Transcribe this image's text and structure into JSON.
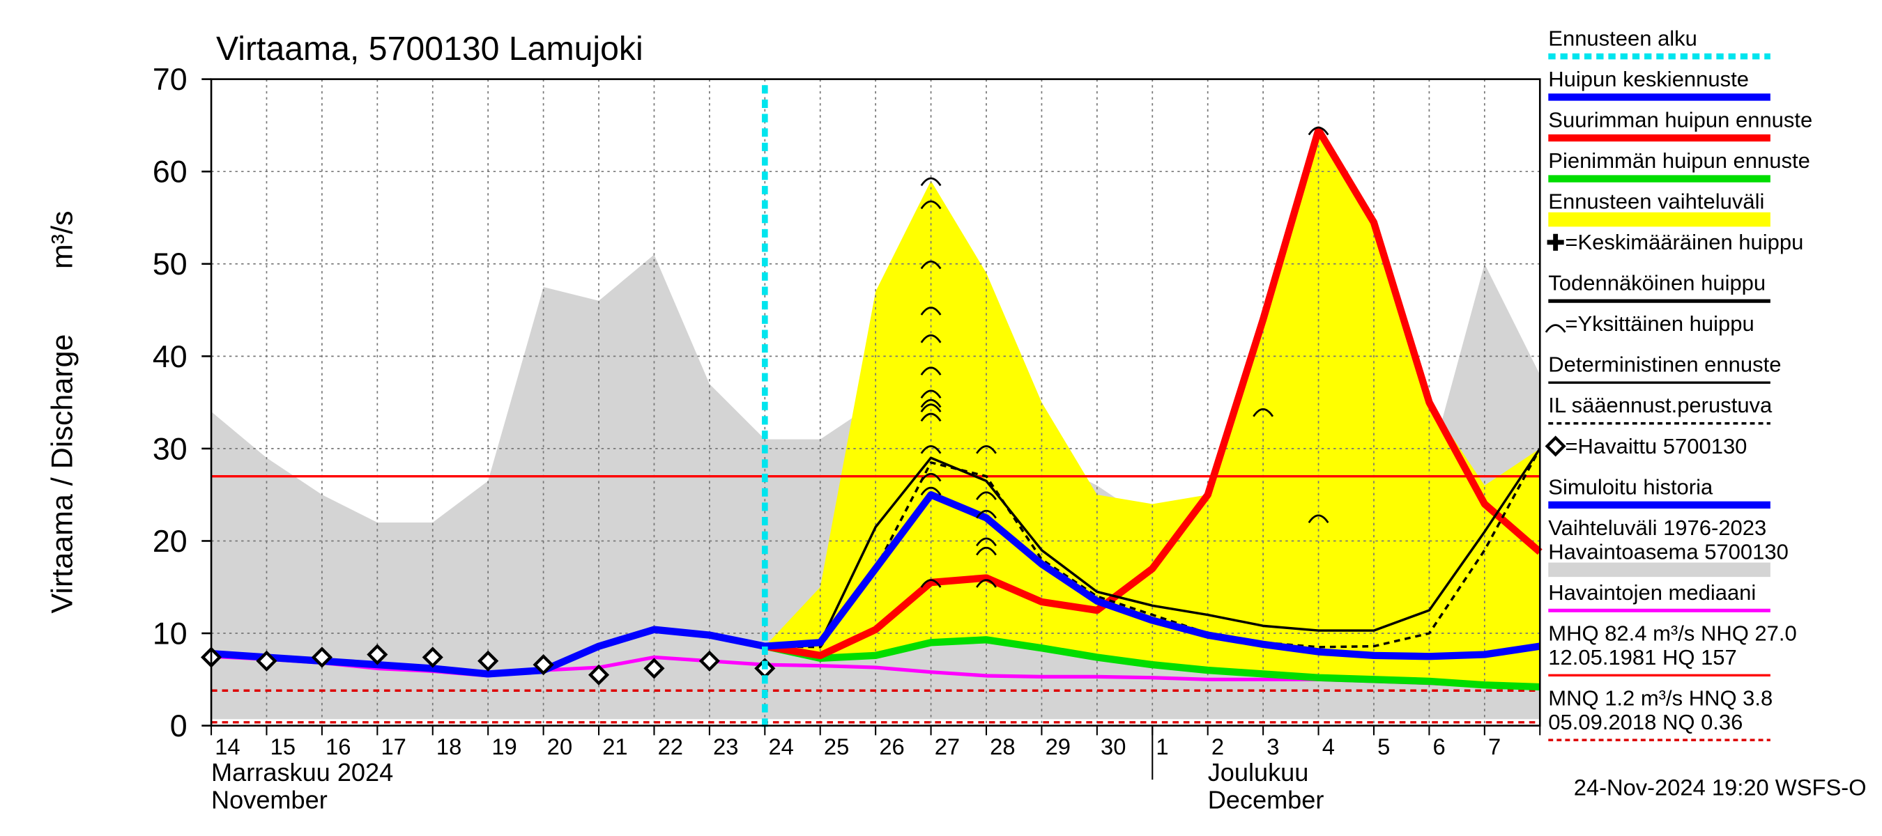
{
  "chart_data": {
    "type": "line",
    "title": "Virtaama, 5700130 Lamujoki",
    "y_label": "Virtaama / Discharge",
    "y_unit": "m³/s",
    "footer": "24-Nov-2024 19:20 WSFS-O",
    "categories": [
      "14",
      "15",
      "16",
      "17",
      "18",
      "19",
      "20",
      "21",
      "22",
      "23",
      "24",
      "25",
      "26",
      "27",
      "28",
      "29",
      "30",
      "1",
      "2",
      "3",
      "4",
      "5",
      "6",
      "7",
      null
    ],
    "ylim": [
      0,
      70
    ],
    "yticks": [
      0,
      10,
      20,
      30,
      40,
      50,
      60,
      70
    ],
    "grid": true,
    "forecast_start": "24",
    "month_start": "1",
    "month_labels": [
      {
        "at": "14",
        "lines": [
          "Marraskuu 2024",
          "November"
        ]
      },
      {
        "at": "2",
        "lines": [
          "Joulukuu",
          "December"
        ]
      }
    ],
    "areas": [
      {
        "color": "#d4d4d4",
        "upper": [
          34,
          29,
          25,
          22,
          22,
          26.5,
          47.5,
          46,
          51,
          37,
          31,
          31,
          35,
          35,
          27.5,
          29,
          26,
          22,
          21,
          21,
          23.5,
          21,
          28,
          50,
          38
        ],
        "lower": [
          0.7,
          0.7,
          0.7,
          0.7,
          0.7,
          0.7,
          0.7,
          0.7,
          0.7,
          0.7,
          0.7,
          0.7,
          0.7,
          0.7,
          0.7,
          0.7,
          0.7,
          0.7,
          0.7,
          0.7,
          0.7,
          0.7,
          0.7,
          0.7,
          0.7
        ]
      },
      {
        "color": "#ffff00",
        "upper": [
          null,
          null,
          null,
          null,
          null,
          null,
          null,
          null,
          null,
          null,
          8.6,
          15,
          47,
          59,
          49,
          35,
          25,
          24,
          25,
          44,
          64.5,
          54.5,
          35,
          26,
          30
        ],
        "lower": [
          null,
          null,
          null,
          null,
          null,
          null,
          null,
          null,
          null,
          null,
          8.6,
          7.3,
          7.6,
          9,
          9.3,
          8.4,
          7.4,
          6.6,
          6,
          5.6,
          5.2,
          5,
          4.8,
          4.4,
          4.2
        ]
      }
    ],
    "hlines": [
      {
        "value": 27.0,
        "color": "#ff0000",
        "dash": false
      },
      {
        "value": 3.8,
        "color": "#dd0000",
        "dash": true
      },
      {
        "value": 0.36,
        "color": "#dd0000",
        "dash": true
      }
    ],
    "series": [
      {
        "color": "#ff00ff",
        "width": 3,
        "dash": false,
        "values": [
          7.5,
          7.2,
          6.8,
          6.2,
          5.9,
          5.4,
          6.0,
          6.3,
          7.4,
          7.0,
          6.6,
          6.5,
          6.3,
          5.8,
          5.4,
          5.3,
          5.3,
          5.2,
          5.0,
          5.0,
          5.0,
          4.8,
          4.6,
          4.3,
          4.2
        ]
      },
      {
        "color": "#00dd00",
        "width": 6,
        "dash": false,
        "values": [
          null,
          null,
          null,
          null,
          null,
          null,
          null,
          null,
          null,
          null,
          8.6,
          7.3,
          7.6,
          9,
          9.3,
          8.4,
          7.4,
          6.6,
          6,
          5.6,
          5.2,
          5,
          4.8,
          4.4,
          4.2
        ]
      },
      {
        "color": "#ff0000",
        "width": 6,
        "dash": false,
        "values": [
          null,
          null,
          null,
          null,
          null,
          null,
          null,
          null,
          null,
          null,
          8.6,
          7.6,
          10.4,
          15.5,
          16,
          13.4,
          12.5,
          17,
          25,
          44,
          64.5,
          54.5,
          35,
          24,
          18.8
        ]
      },
      {
        "color": "#000000",
        "width": 2,
        "dash": false,
        "values": [
          null,
          null,
          null,
          null,
          null,
          null,
          null,
          null,
          null,
          null,
          8.6,
          9,
          21.5,
          29,
          26.5,
          19,
          14.5,
          13,
          12,
          10.8,
          10.3,
          10.3,
          12.5,
          21,
          30
        ]
      },
      {
        "color": "#000000",
        "width": 2,
        "dash": true,
        "values": [
          null,
          null,
          null,
          null,
          null,
          null,
          null,
          null,
          null,
          null,
          8.6,
          8.5,
          17,
          28.5,
          27,
          18,
          14,
          12,
          10,
          9,
          8.5,
          8.6,
          10,
          19,
          30
        ]
      },
      {
        "color": "#0000ff",
        "width": 6,
        "dash": false,
        "values": [
          7.8,
          7.4,
          7.0,
          6.6,
          6.2,
          5.6,
          6.0,
          8.6,
          10.4,
          9.8,
          8.6,
          9,
          17,
          25,
          22.5,
          17.5,
          13.5,
          11.4,
          9.8,
          8.8,
          8.0,
          7.6,
          7.5,
          7.7,
          8.6
        ]
      }
    ],
    "observed": [
      7.4,
      7.0,
      7.4,
      7.7,
      7.4,
      7.0,
      6.6,
      5.5,
      6.2,
      7.0,
      6.2,
      null,
      null,
      null,
      null,
      null,
      null,
      null,
      null,
      null,
      null,
      null,
      null,
      null,
      null
    ],
    "peaks": {
      "x": [
        "27",
        "27",
        "27",
        "27",
        "27",
        "27",
        "27",
        "27",
        "27",
        "27",
        "27",
        "27",
        "27",
        "27",
        "28",
        "28",
        "28",
        "28",
        "28",
        "28",
        "3",
        "4",
        "4"
      ],
      "values": [
        59,
        56.5,
        50,
        45,
        42,
        38.5,
        36,
        35,
        34.5,
        33.5,
        30,
        27,
        25.5,
        15.5,
        30,
        25,
        23,
        20,
        19,
        15.5,
        34,
        64.5,
        22.5
      ]
    },
    "legend": [
      {
        "lines": [
          "Ennusteen alku"
        ],
        "color": "#00e5ee",
        "style": "dash",
        "width": 5
      },
      {
        "lines": [
          "Huipun keskiennuste"
        ],
        "color": "#0000ff",
        "style": "line",
        "width": 6
      },
      {
        "lines": [
          "Suurimman huipun ennuste"
        ],
        "color": "#ff0000",
        "style": "line",
        "width": 6
      },
      {
        "lines": [
          "Pienimmän huipun ennuste"
        ],
        "color": "#00dd00",
        "style": "line",
        "width": 6
      },
      {
        "lines": [
          "Ennusteen vaihteluväli"
        ],
        "color": "#ffff00",
        "style": "line",
        "width": 12
      },
      {
        "lines": [
          "=Keskimääräinen huippu"
        ],
        "symbol": "cross"
      },
      {
        "lines": [
          "Todennäköinen huippu"
        ],
        "color": "#000000",
        "style": "line",
        "width": 3
      },
      {
        "lines": [
          "=Yksittäinen huippu"
        ],
        "symbol": "arc"
      },
      {
        "lines": [
          "Deterministinen ennuste"
        ],
        "color": "#000000",
        "style": "line",
        "width": 2
      },
      {
        "lines": [
          "IL sääennust.perustuva"
        ],
        "color": "#000000",
        "style": "dash",
        "width": 2
      },
      {
        "lines": [
          "=Havaittu 5700130"
        ],
        "symbol": "diamond"
      },
      {
        "lines": [
          "Simuloitu historia"
        ],
        "color": "#0000ff",
        "style": "line",
        "width": 6
      },
      {
        "lines": [
          "Vaihteluväli 1976-2023",
          " Havaintoasema 5700130"
        ],
        "color": "#d4d4d4",
        "style": "line",
        "width": 12
      },
      {
        "lines": [
          "Havaintojen mediaani"
        ],
        "color": "#ff00ff",
        "style": "line",
        "width": 3
      },
      {
        "lines": [
          "MHQ 82.4 m³/s NHQ 27.0",
          "12.05.1981 HQ  157"
        ],
        "color": "#ff0000",
        "style": "line",
        "width": 2
      },
      {
        "lines": [
          "MNQ  1.2 m³/s HNQ  3.8",
          "05.09.2018 NQ 0.36"
        ],
        "color": "#dd0000",
        "style": "dash",
        "width": 2
      }
    ]
  }
}
